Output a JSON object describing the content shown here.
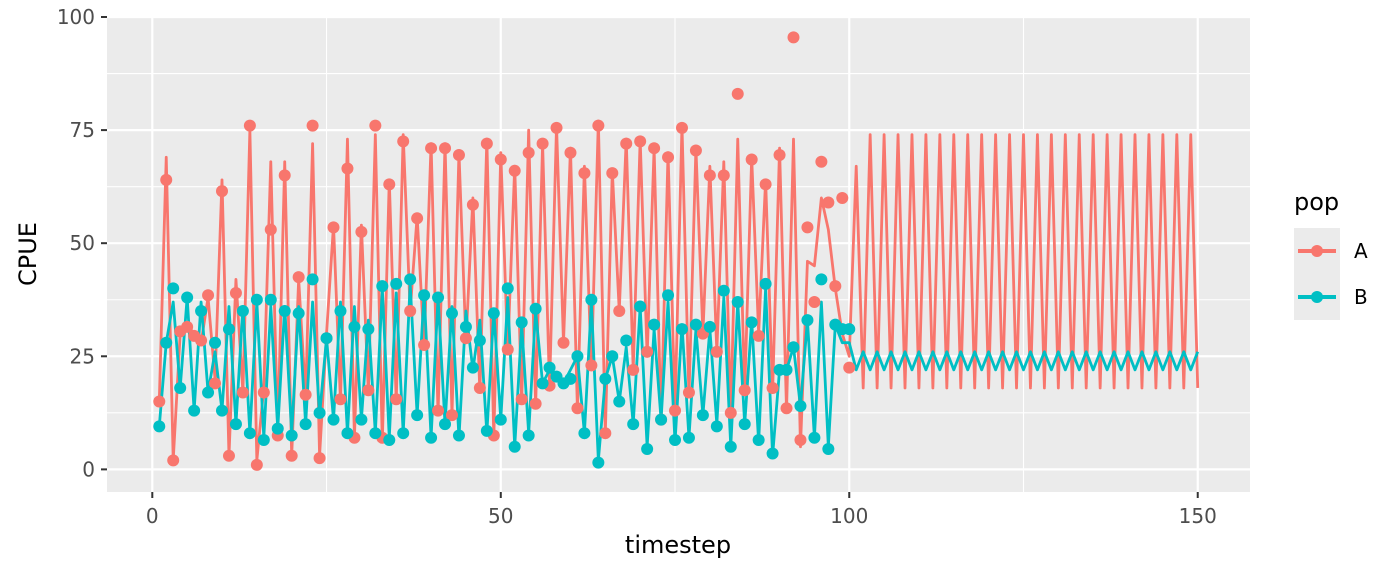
{
  "chart_data": {
    "type": "line",
    "xlabel": "timestep",
    "ylabel": "CPUE",
    "xlim": [
      -6.5,
      157.5
    ],
    "ylim": [
      -5,
      100
    ],
    "x_ticks": [
      0,
      50,
      100,
      150
    ],
    "y_ticks": [
      0,
      25,
      50,
      75,
      100
    ],
    "grid": true,
    "legend": {
      "title": "pop",
      "position": "right"
    },
    "series": [
      {
        "name": "A",
        "color": "#F8766D",
        "line_x": [
          1,
          2,
          3,
          4,
          5,
          6,
          7,
          8,
          9,
          10,
          11,
          12,
          13,
          14,
          15,
          16,
          17,
          18,
          19,
          20,
          21,
          22,
          23,
          24,
          25,
          26,
          27,
          28,
          29,
          30,
          31,
          32,
          33,
          34,
          35,
          36,
          37,
          38,
          39,
          40,
          41,
          42,
          43,
          44,
          45,
          46,
          47,
          48,
          49,
          50,
          51,
          52,
          53,
          54,
          55,
          56,
          57,
          58,
          59,
          60,
          61,
          62,
          63,
          64,
          65,
          66,
          67,
          68,
          69,
          70,
          71,
          72,
          73,
          74,
          75,
          76,
          77,
          78,
          79,
          80,
          81,
          82,
          83,
          84,
          85,
          86,
          87,
          88,
          89,
          90,
          91,
          92,
          93,
          94,
          95,
          96,
          97,
          98,
          99,
          100,
          101,
          102,
          103,
          104,
          105,
          106,
          107,
          108,
          109,
          110,
          111,
          112,
          113,
          114,
          115,
          116,
          117,
          118,
          119,
          120,
          121,
          122,
          123,
          124,
          125,
          126,
          127,
          128,
          129,
          130,
          131,
          132,
          133,
          134,
          135,
          136,
          137,
          138,
          139,
          140,
          141,
          142,
          143,
          144,
          145,
          146,
          147,
          148,
          149,
          150
        ],
        "line_y": [
          15,
          69,
          2,
          30,
          32,
          30,
          28,
          38,
          20,
          64,
          3,
          42,
          17,
          75,
          2,
          18,
          68,
          8,
          68,
          3,
          42,
          16,
          72,
          3,
          30,
          54,
          15,
          73,
          7,
          54,
          17,
          74,
          6,
          64,
          15,
          74,
          35,
          56,
          27,
          72,
          12,
          72,
          12,
          70,
          28,
          60,
          17,
          73,
          7,
          70,
          26,
          67,
          15,
          75,
          14,
          72,
          18,
          76,
          28,
          71,
          13,
          67,
          22,
          77,
          8,
          66,
          35,
          73,
          22,
          73,
          25,
          71,
          10,
          70,
          13,
          76,
          16,
          71,
          30,
          67,
          26,
          68,
          12,
          73,
          17,
          69,
          30,
          64,
          17,
          71,
          13,
          73,
          5,
          46,
          45,
          60,
          53,
          40,
          30,
          25,
          67,
          18,
          74,
          18,
          74,
          18,
          74,
          18,
          74,
          18,
          74,
          18,
          74,
          18,
          74,
          18,
          74,
          18,
          74,
          18,
          74,
          18,
          74,
          18,
          74,
          18,
          74,
          18,
          74,
          18,
          74,
          18,
          74,
          18,
          74,
          18,
          74,
          18,
          74,
          18,
          74,
          18,
          74,
          18,
          74,
          18,
          74,
          18,
          74,
          18
        ],
        "points_x": [
          1,
          2,
          3,
          4,
          5,
          6,
          7,
          8,
          9,
          10,
          11,
          12,
          13,
          14,
          15,
          16,
          17,
          18,
          19,
          20,
          21,
          22,
          23,
          24,
          25,
          26,
          27,
          28,
          29,
          30,
          31,
          32,
          33,
          34,
          35,
          36,
          37,
          38,
          39,
          40,
          41,
          42,
          43,
          44,
          45,
          46,
          47,
          48,
          49,
          50,
          51,
          52,
          53,
          54,
          55,
          56,
          57,
          58,
          59,
          60,
          61,
          62,
          63,
          64,
          65,
          66,
          67,
          68,
          69,
          70,
          71,
          72,
          73,
          74,
          75,
          76,
          77,
          78,
          79,
          80,
          81,
          82,
          83,
          84,
          85,
          86,
          87,
          88,
          89,
          90,
          91,
          92,
          93,
          94,
          95,
          96,
          97,
          98,
          99,
          100
        ],
        "points_y": [
          15,
          64,
          2,
          30.5,
          31.5,
          29.5,
          28.5,
          38.5,
          19,
          61.5,
          3,
          39,
          17,
          76,
          1,
          17,
          53,
          7.5,
          65,
          3,
          42.5,
          16.5,
          76,
          2.5,
          29,
          53.5,
          15.5,
          66.5,
          7,
          52.5,
          17.5,
          76,
          7,
          63,
          15.5,
          72.5,
          35,
          55.5,
          27.5,
          71,
          13,
          71,
          12,
          69.5,
          29,
          58.5,
          18,
          72,
          7.5,
          68.5,
          26.5,
          66,
          15.5,
          70,
          14.5,
          72,
          18.5,
          75.5,
          28,
          70,
          13.5,
          65.5,
          23,
          76,
          8,
          65.5,
          35,
          72,
          22,
          72.5,
          26,
          71,
          11,
          69,
          13,
          75.5,
          17,
          70.5,
          30,
          65,
          26,
          65,
          12.5,
          83,
          17.5,
          68.5,
          29.5,
          63,
          18,
          69.5,
          13.5,
          95.5,
          6.5,
          53.5,
          37,
          68,
          59,
          40.5,
          60,
          22.5
        ]
      },
      {
        "name": "B",
        "color": "#00BFC4",
        "line_x": [
          1,
          2,
          3,
          4,
          5,
          6,
          7,
          8,
          9,
          10,
          11,
          12,
          13,
          14,
          15,
          16,
          17,
          18,
          19,
          20,
          21,
          22,
          23,
          24,
          25,
          26,
          27,
          28,
          29,
          30,
          31,
          32,
          33,
          34,
          35,
          36,
          37,
          38,
          39,
          40,
          41,
          42,
          43,
          44,
          45,
          46,
          47,
          48,
          49,
          50,
          51,
          52,
          53,
          54,
          55,
          56,
          57,
          58,
          59,
          60,
          61,
          62,
          63,
          64,
          65,
          66,
          67,
          68,
          69,
          70,
          71,
          72,
          73,
          74,
          75,
          76,
          77,
          78,
          79,
          80,
          81,
          82,
          83,
          84,
          85,
          86,
          87,
          88,
          89,
          90,
          91,
          92,
          93,
          94,
          95,
          96,
          97,
          98,
          99,
          100,
          101,
          102,
          103,
          104,
          105,
          106,
          107,
          108,
          109,
          110,
          111,
          112,
          113,
          114,
          115,
          116,
          117,
          118,
          119,
          120,
          121,
          122,
          123,
          124,
          125,
          126,
          127,
          128,
          129,
          130,
          131,
          132,
          133,
          134,
          135,
          136,
          137,
          138,
          139,
          140,
          141,
          142,
          143,
          144,
          145,
          146,
          147,
          148,
          149,
          150
        ],
        "line_y": [
          9.5,
          28,
          37,
          18,
          38,
          13,
          37,
          17,
          26,
          13,
          36,
          10,
          36,
          8,
          37,
          7,
          36,
          9,
          36,
          8,
          36,
          10,
          37,
          12,
          29,
          11,
          37,
          8,
          36,
          11,
          33,
          8,
          40,
          7,
          39,
          8,
          41,
          12,
          39,
          7,
          38,
          10,
          36,
          7,
          35,
          22,
          33,
          8,
          35,
          11,
          38,
          5,
          32,
          8,
          35,
          19,
          22,
          20,
          19,
          22,
          25,
          8,
          37,
          2,
          20,
          25,
          15,
          27,
          10,
          36,
          5,
          31,
          11,
          37,
          6,
          32,
          7,
          31,
          12,
          31,
          10,
          38,
          5,
          37,
          10,
          33,
          6,
          40,
          3,
          22,
          22,
          27,
          14,
          33,
          7,
          37,
          5,
          32,
          28,
          28,
          22,
          26,
          22,
          26,
          22,
          26,
          22,
          26,
          22,
          26,
          22,
          26,
          22,
          26,
          22,
          26,
          22,
          26,
          22,
          26,
          22,
          26,
          22,
          26,
          22,
          26,
          22,
          26,
          22,
          26,
          22,
          26,
          22,
          26,
          22,
          26,
          22,
          26,
          22,
          26,
          22,
          26,
          22,
          26,
          22,
          26,
          22,
          26,
          22,
          26,
          22,
          26,
          22,
          26,
          22,
          26,
          22,
          26,
          22,
          26
        ],
        "points_x": [
          1,
          2,
          3,
          4,
          5,
          6,
          7,
          8,
          9,
          10,
          11,
          12,
          13,
          14,
          15,
          16,
          17,
          18,
          19,
          20,
          21,
          22,
          23,
          24,
          25,
          26,
          27,
          28,
          29,
          30,
          31,
          32,
          33,
          34,
          35,
          36,
          37,
          38,
          39,
          40,
          41,
          42,
          43,
          44,
          45,
          46,
          47,
          48,
          49,
          50,
          51,
          52,
          53,
          54,
          55,
          56,
          57,
          58,
          59,
          60,
          61,
          62,
          63,
          64,
          65,
          66,
          67,
          68,
          69,
          70,
          71,
          72,
          73,
          74,
          75,
          76,
          77,
          78,
          79,
          80,
          81,
          82,
          83,
          84,
          85,
          86,
          87,
          88,
          89,
          90,
          91,
          92,
          93,
          94,
          95,
          96,
          97,
          98,
          99,
          100
        ],
        "points_y": [
          9.5,
          28,
          40,
          18,
          38,
          13,
          35,
          17,
          28,
          13,
          31,
          10,
          35,
          8,
          37.5,
          6.5,
          37.5,
          9,
          35,
          7.5,
          34.5,
          10,
          42,
          12.5,
          29,
          11,
          35,
          8,
          31.5,
          11,
          31,
          8,
          40.5,
          6.5,
          41,
          8,
          42,
          12,
          38.5,
          7,
          38,
          10,
          34.5,
          7.5,
          31.5,
          22.5,
          28.5,
          8.5,
          34.5,
          11,
          40,
          5,
          32.5,
          7.5,
          35.5,
          19,
          22.5,
          20.5,
          19,
          20,
          25,
          8,
          37.5,
          1.5,
          20,
          25,
          15,
          28.5,
          10,
          36,
          4.5,
          32,
          11,
          38.5,
          6.5,
          31,
          7,
          32,
          12,
          31.5,
          9.5,
          39.5,
          5,
          37,
          10,
          32.5,
          6.5,
          41,
          3.5,
          22,
          22,
          27,
          14,
          33,
          7,
          42,
          4.5,
          32,
          31,
          31
        ]
      }
    ]
  }
}
